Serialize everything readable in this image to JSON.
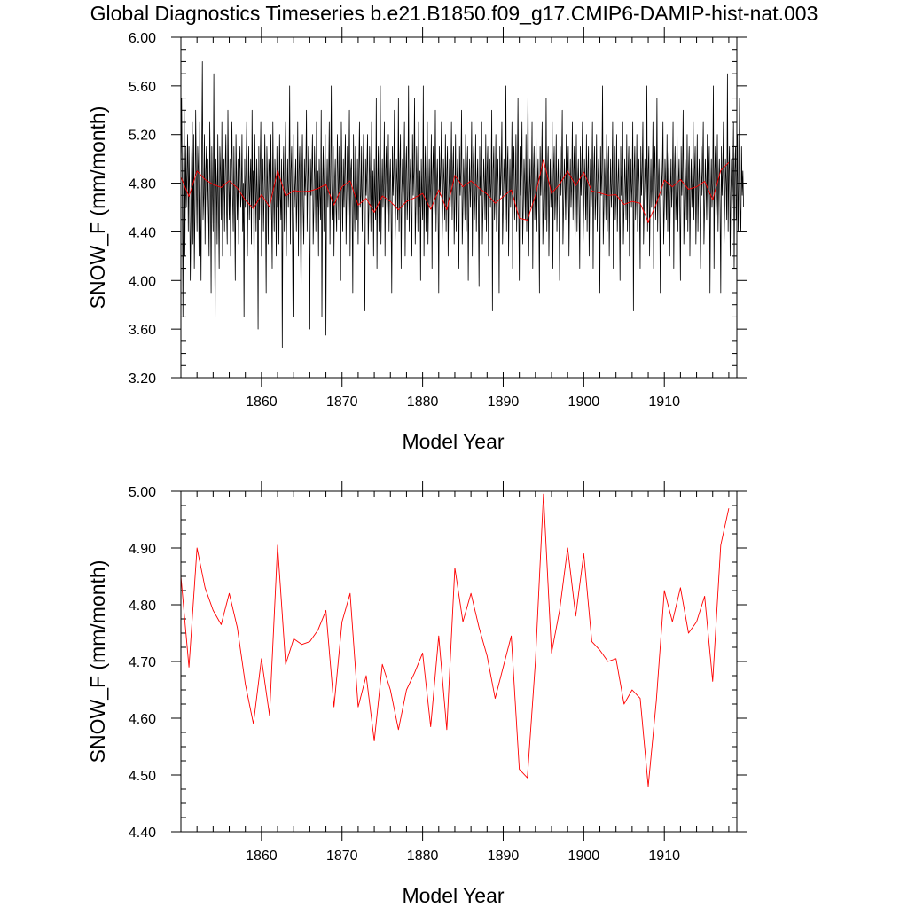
{
  "figure": {
    "title": "Global Diagnostics Timeseries b.e21.B1850.f09_g17.CMIP6-DAMIP-hist-nat.003"
  },
  "colors": {
    "monthly": "#000000",
    "annual": "#ff0000",
    "frame": "#000000"
  },
  "chart_data": [
    {
      "type": "line",
      "xlabel": "Model Year",
      "ylabel": "SNOW_F (mm/month)",
      "xlim": [
        1850,
        1919
      ],
      "ylim": [
        3.2,
        6.0
      ],
      "xticks": [
        1860,
        1870,
        1880,
        1890,
        1900,
        1910
      ],
      "xtick_labels": [
        "1860",
        "1870",
        "1880",
        "1890",
        "1900",
        "1910"
      ],
      "yticks": [
        3.2,
        3.6,
        4.0,
        4.4,
        4.8,
        5.2,
        5.6,
        6.0
      ],
      "ytick_labels": [
        "3.20",
        "3.60",
        "4.00",
        "4.40",
        "4.80",
        "5.20",
        "5.60",
        "6.00"
      ],
      "grid": false,
      "series": [
        {
          "key": "monthly",
          "color": "#000000",
          "x_start": 1850.0,
          "x_step": 0.0833333,
          "values": [
            4.9,
            5.5,
            4.8,
            3.7,
            4.9,
            5.4,
            4.2,
            5.1,
            4.6,
            4.9,
            5.2,
            4.4,
            5.1,
            4.7,
            4.0,
            4.5,
            5.0,
            5.3,
            4.3,
            5.2,
            4.1,
            4.6,
            5.4,
            4.8,
            4.4,
            5.1,
            4.9,
            4.2,
            5.3,
            4.6,
            4.0,
            5.0,
            5.8,
            4.5,
            4.7,
            5.2,
            4.3,
            4.9,
            5.1,
            4.4,
            5.0,
            4.6,
            4.2,
            5.3,
            4.8,
            3.9,
            5.1,
            4.7,
            4.4,
            5.7,
            4.5,
            3.7,
            5.0,
            4.8,
            4.3,
            5.2,
            4.6,
            4.1,
            5.1,
            4.9,
            4.5,
            5.3,
            4.2,
            4.7,
            5.0,
            4.4,
            4.9,
            5.2,
            4.6,
            4.3,
            5.4,
            4.8,
            4.5,
            5.0,
            4.2,
            4.9,
            5.3,
            4.7,
            4.4,
            5.1,
            4.6,
            4.0,
            5.2,
            4.8,
            4.5,
            5.0,
            4.3,
            4.9,
            5.1,
            4.6,
            4.7,
            5.2,
            4.4,
            4.8,
            3.7,
            5.0,
            4.6,
            4.9,
            5.3,
            4.2,
            4.7,
            5.1,
            4.5,
            4.8,
            5.0,
            4.3,
            5.4,
            4.6,
            4.9,
            4.1,
            5.2,
            4.8,
            4.4,
            5.0,
            4.7,
            3.6,
            5.1,
            4.5,
            4.9,
            5.3,
            4.2,
            4.8,
            5.0,
            4.4,
            4.7,
            5.2,
            4.6,
            3.9,
            5.1,
            4.8,
            4.3,
            5.0,
            4.9,
            4.5,
            5.2,
            4.6,
            4.1,
            5.3,
            4.7,
            4.4,
            5.0,
            4.8,
            4.2,
            5.1,
            4.6,
            4.9,
            4.3,
            5.2,
            4.7,
            4.5,
            5.0,
            3.45,
            4.8,
            5.1,
            4.4,
            4.9,
            5.3,
            4.2,
            4.7,
            5.0,
            4.6,
            4.8,
            5.6,
            4.3,
            4.9,
            5.1,
            4.5,
            3.7,
            5.2,
            4.6,
            4.8,
            5.0,
            4.4,
            4.7,
            5.3,
            4.2,
            4.9,
            5.1,
            4.5,
            3.9,
            4.8,
            5.2,
            4.6,
            4.3,
            5.0,
            4.7,
            4.9,
            5.4,
            4.4,
            4.8,
            5.1,
            4.5,
            3.6,
            5.0,
            4.7,
            4.9,
            5.2,
            4.3,
            4.6,
            5.1,
            4.8,
            4.4,
            5.3,
            4.6,
            4.9,
            4.2,
            5.0,
            4.7,
            4.5,
            5.4,
            3.7,
            4.8,
            5.1,
            4.4,
            4.9,
            5.2,
            3.55,
            4.7,
            5.0,
            4.6,
            4.8,
            5.3,
            4.3,
            4.9,
            5.6,
            4.5,
            4.7,
            5.1,
            4.2,
            4.8,
            5.0,
            4.6,
            4.4,
            5.2,
            4.9,
            4.5,
            5.1,
            4.7,
            4.0,
            5.3,
            4.8,
            4.4,
            5.0,
            4.6,
            4.9,
            5.2,
            4.3,
            4.7,
            5.1,
            4.5,
            4.8,
            5.4,
            4.2,
            4.9,
            5.0,
            4.6,
            3.9,
            5.2,
            4.7,
            4.4,
            5.1,
            4.8,
            4.5,
            5.0,
            4.3,
            4.9,
            5.3,
            4.6,
            4.7,
            5.1,
            4.4,
            4.8,
            5.2,
            4.5,
            3.75,
            5.0,
            4.7,
            4.9,
            5.2,
            4.3,
            4.6,
            5.1,
            4.8,
            4.4,
            5.3,
            4.6,
            4.9,
            4.2,
            5.0,
            4.7,
            4.5,
            5.5,
            4.1,
            4.8,
            5.1,
            4.4,
            4.9,
            5.6,
            4.3,
            4.7,
            5.0,
            4.6,
            4.8,
            5.3,
            4.2,
            4.9,
            5.1,
            4.5,
            4.7,
            5.2,
            4.4,
            4.8,
            5.0,
            4.6,
            3.9,
            5.1,
            4.7,
            4.9,
            5.4,
            4.3,
            4.6,
            5.0,
            4.8,
            4.5,
            5.5,
            4.4,
            4.9,
            5.2,
            4.1,
            4.7,
            5.0,
            4.6,
            4.8,
            5.3,
            4.2,
            4.9,
            5.1,
            4.5,
            4.7,
            5.6,
            4.4,
            4.8,
            5.0,
            4.6,
            4.2,
            5.2,
            4.7,
            4.9,
            5.5,
            4.3,
            4.6,
            5.1,
            4.8,
            4.4,
            5.3,
            4.6,
            4.9,
            4.0,
            5.0,
            4.7,
            4.5,
            5.6,
            4.2,
            4.8,
            5.1,
            4.4,
            4.9,
            5.3,
            4.3,
            4.7,
            5.0,
            4.6,
            4.8,
            5.2,
            4.1,
            4.9,
            5.1,
            4.5,
            4.7,
            5.4,
            4.4,
            4.8,
            5.0,
            4.6,
            3.9,
            5.1,
            4.7,
            4.9,
            5.3,
            4.3,
            4.6,
            5.0,
            4.8,
            4.5,
            5.2,
            4.4,
            4.9,
            5.1,
            4.2,
            4.7,
            5.0,
            4.6,
            4.8,
            5.3,
            4.5,
            4.9,
            5.1,
            4.3,
            4.7,
            5.2,
            4.4,
            4.8,
            5.0,
            4.6,
            4.1,
            5.1,
            4.7,
            4.9,
            5.4,
            4.3,
            4.6,
            5.0,
            4.8,
            4.5,
            5.2,
            4.4,
            4.9,
            5.1,
            4.0,
            4.7,
            5.0,
            4.6,
            4.8,
            5.3,
            4.2,
            4.9,
            5.1,
            4.5,
            4.7,
            5.2,
            4.4,
            4.8,
            5.0,
            4.6,
            3.95,
            5.1,
            4.7,
            4.9,
            5.3,
            4.3,
            4.6,
            5.0,
            4.8,
            4.5,
            5.2,
            4.4,
            4.9,
            5.1,
            4.2,
            4.7,
            5.0,
            4.6,
            4.8,
            5.4,
            3.75,
            4.9,
            5.1,
            4.5,
            4.7,
            5.2,
            4.4,
            4.8,
            5.0,
            4.6,
            3.9,
            5.1,
            4.7,
            4.9,
            5.3,
            4.3,
            4.6,
            5.0,
            4.8,
            4.5,
            5.6,
            4.4,
            4.9,
            5.1,
            4.2,
            4.7,
            5.0,
            4.6,
            4.8,
            5.3,
            4.1,
            4.9,
            5.1,
            4.5,
            4.7,
            5.2,
            4.4,
            4.8,
            5.5,
            4.6,
            4.0,
            5.1,
            4.7,
            4.9,
            5.3,
            4.3,
            4.6,
            5.0,
            4.8,
            4.5,
            5.2,
            4.4,
            4.9,
            5.6,
            4.2,
            4.7,
            5.0,
            4.6,
            4.8,
            5.3,
            4.1,
            4.9,
            5.1,
            4.5,
            4.7,
            5.2,
            4.4,
            4.8,
            5.0,
            4.6,
            3.9,
            5.1,
            4.7,
            4.9,
            5.3,
            4.3,
            4.6,
            5.0,
            4.8,
            4.5,
            5.5,
            4.4,
            4.9,
            5.1,
            4.2,
            4.7,
            5.0,
            4.6,
            4.8,
            5.3,
            4.1,
            4.9,
            5.1,
            4.5,
            4.7,
            5.2,
            4.4,
            4.8,
            5.0,
            4.6,
            4.0,
            5.1,
            4.7,
            4.9,
            5.4,
            4.3,
            4.6,
            5.0,
            4.8,
            4.5,
            5.2,
            4.4,
            4.9,
            5.1,
            4.2,
            4.7,
            5.0,
            4.6,
            4.8,
            5.3,
            4.5,
            4.9,
            5.1,
            4.3,
            4.7,
            5.2,
            4.4,
            4.8,
            5.0,
            4.6,
            4.1,
            5.1,
            4.7,
            4.9,
            5.3,
            4.3,
            4.6,
            5.0,
            4.8,
            4.5,
            5.2,
            4.4,
            4.9,
            5.1,
            4.2,
            4.7,
            5.0,
            4.6,
            4.8,
            5.3,
            4.1,
            4.9,
            5.1,
            4.5,
            4.7,
            5.2,
            4.4,
            4.8,
            5.0,
            4.6,
            3.9,
            5.1,
            4.7,
            4.9,
            5.6,
            4.3,
            4.6,
            5.0,
            4.8,
            4.5,
            5.2,
            4.4,
            4.9,
            5.1,
            4.2,
            4.7,
            5.0,
            4.6,
            4.8,
            5.3,
            4.1,
            4.9,
            5.1,
            4.5,
            4.7,
            5.2,
            4.4,
            4.8,
            5.0,
            4.6,
            4.0,
            5.1,
            4.7,
            4.9,
            5.3,
            4.3,
            4.6,
            5.0,
            4.8,
            4.5,
            5.2,
            4.4,
            4.9,
            5.1,
            4.2,
            4.7,
            5.0,
            4.6,
            4.8,
            5.3,
            3.75,
            4.9,
            5.1,
            4.5,
            4.7,
            5.2,
            4.4,
            4.8,
            5.0,
            4.6,
            4.1,
            5.1,
            4.7,
            4.9,
            5.3,
            4.3,
            4.6,
            5.0,
            4.8,
            4.5,
            5.6,
            4.4,
            4.9,
            5.1,
            4.2,
            4.7,
            5.0,
            4.6,
            4.8,
            5.3,
            4.1,
            4.9,
            5.1,
            4.5,
            4.7,
            5.5,
            4.4,
            4.8,
            5.0,
            4.6,
            3.9,
            5.1,
            4.7,
            4.9,
            5.3,
            4.3,
            4.6,
            5.0,
            4.8,
            4.5,
            5.2,
            4.4,
            4.9,
            5.1,
            4.2,
            4.7,
            5.0,
            4.6,
            4.8,
            5.3,
            4.1,
            4.9,
            5.1,
            4.5,
            4.7,
            5.2,
            4.4,
            4.8,
            5.0,
            4.6,
            4.0,
            5.1,
            4.7,
            4.9,
            5.4,
            4.3,
            4.6,
            5.0,
            4.8,
            4.5,
            5.2,
            4.4,
            4.9,
            5.1,
            4.2,
            4.7,
            5.0,
            4.6,
            4.8,
            5.3,
            4.5,
            4.9,
            5.1,
            4.3,
            4.7,
            5.2,
            4.4,
            4.8,
            5.0,
            4.6,
            4.1,
            5.1,
            4.7,
            4.9,
            5.3,
            4.3,
            4.6,
            5.0,
            4.8,
            4.5,
            5.2,
            4.4,
            4.9,
            5.1,
            3.9,
            4.7,
            5.0,
            4.6,
            4.8,
            5.6,
            4.1,
            4.9,
            5.1,
            4.5,
            4.7,
            5.2,
            4.4,
            4.8,
            5.0,
            4.6,
            3.9,
            5.1,
            4.7,
            4.9,
            5.3,
            4.3,
            4.6,
            5.0,
            4.8,
            4.5,
            5.7,
            4.4,
            4.9,
            5.1,
            4.2,
            4.7,
            5.0,
            4.6,
            4.8,
            5.3,
            4.1,
            4.9,
            5.1,
            4.5,
            4.7,
            5.2,
            4.4,
            4.8,
            5.5,
            4.6,
            4.4,
            5.1,
            4.7,
            4.9,
            4.6
          ]
        },
        {
          "key": "annual",
          "color": "#ff0000",
          "x_start": 1850.0,
          "x_step": 1.0,
          "values": [
            4.85,
            4.69,
            4.9,
            4.83,
            4.79,
            4.765,
            4.82,
            4.76,
            4.66,
            4.59,
            4.705,
            4.605,
            4.905,
            4.695,
            4.74,
            4.73,
            4.735,
            4.755,
            4.79,
            4.62,
            4.77,
            4.82,
            4.62,
            4.675,
            4.56,
            4.695,
            4.65,
            4.58,
            4.65,
            4.68,
            4.715,
            4.585,
            4.745,
            4.58,
            4.865,
            4.77,
            4.82,
            4.76,
            4.71,
            4.635,
            4.69,
            4.745,
            4.51,
            4.495,
            4.7,
            4.995,
            4.715,
            4.79,
            4.9,
            4.78,
            4.89,
            4.735,
            4.72,
            4.7,
            4.705,
            4.625,
            4.65,
            4.635,
            4.48,
            4.63,
            4.825,
            4.77,
            4.83,
            4.75,
            4.77,
            4.815,
            4.665,
            4.905,
            4.97
          ]
        }
      ]
    },
    {
      "type": "line",
      "xlabel": "Model Year",
      "ylabel": "SNOW_F (mm/month)",
      "xlim": [
        1850,
        1919
      ],
      "ylim": [
        4.4,
        5.0
      ],
      "xticks": [
        1860,
        1870,
        1880,
        1890,
        1900,
        1910
      ],
      "xtick_labels": [
        "1860",
        "1870",
        "1880",
        "1890",
        "1900",
        "1910"
      ],
      "yticks": [
        4.4,
        4.5,
        4.6,
        4.7,
        4.8,
        4.9,
        5.0
      ],
      "ytick_labels": [
        "4.40",
        "4.50",
        "4.60",
        "4.70",
        "4.80",
        "4.90",
        "5.00"
      ],
      "grid": false,
      "series": [
        {
          "key": "annual",
          "color": "#ff0000",
          "x_start": 1850.0,
          "x_step": 1.0,
          "values": [
            4.85,
            4.69,
            4.9,
            4.83,
            4.79,
            4.765,
            4.82,
            4.76,
            4.66,
            4.59,
            4.705,
            4.605,
            4.905,
            4.695,
            4.74,
            4.73,
            4.735,
            4.755,
            4.79,
            4.62,
            4.77,
            4.82,
            4.62,
            4.675,
            4.56,
            4.695,
            4.65,
            4.58,
            4.65,
            4.68,
            4.715,
            4.585,
            4.745,
            4.58,
            4.865,
            4.77,
            4.82,
            4.76,
            4.71,
            4.635,
            4.69,
            4.745,
            4.51,
            4.495,
            4.7,
            4.995,
            4.715,
            4.79,
            4.9,
            4.78,
            4.89,
            4.735,
            4.72,
            4.7,
            4.705,
            4.625,
            4.65,
            4.635,
            4.48,
            4.63,
            4.825,
            4.77,
            4.83,
            4.75,
            4.77,
            4.815,
            4.665,
            4.905,
            4.97
          ]
        }
      ]
    }
  ]
}
